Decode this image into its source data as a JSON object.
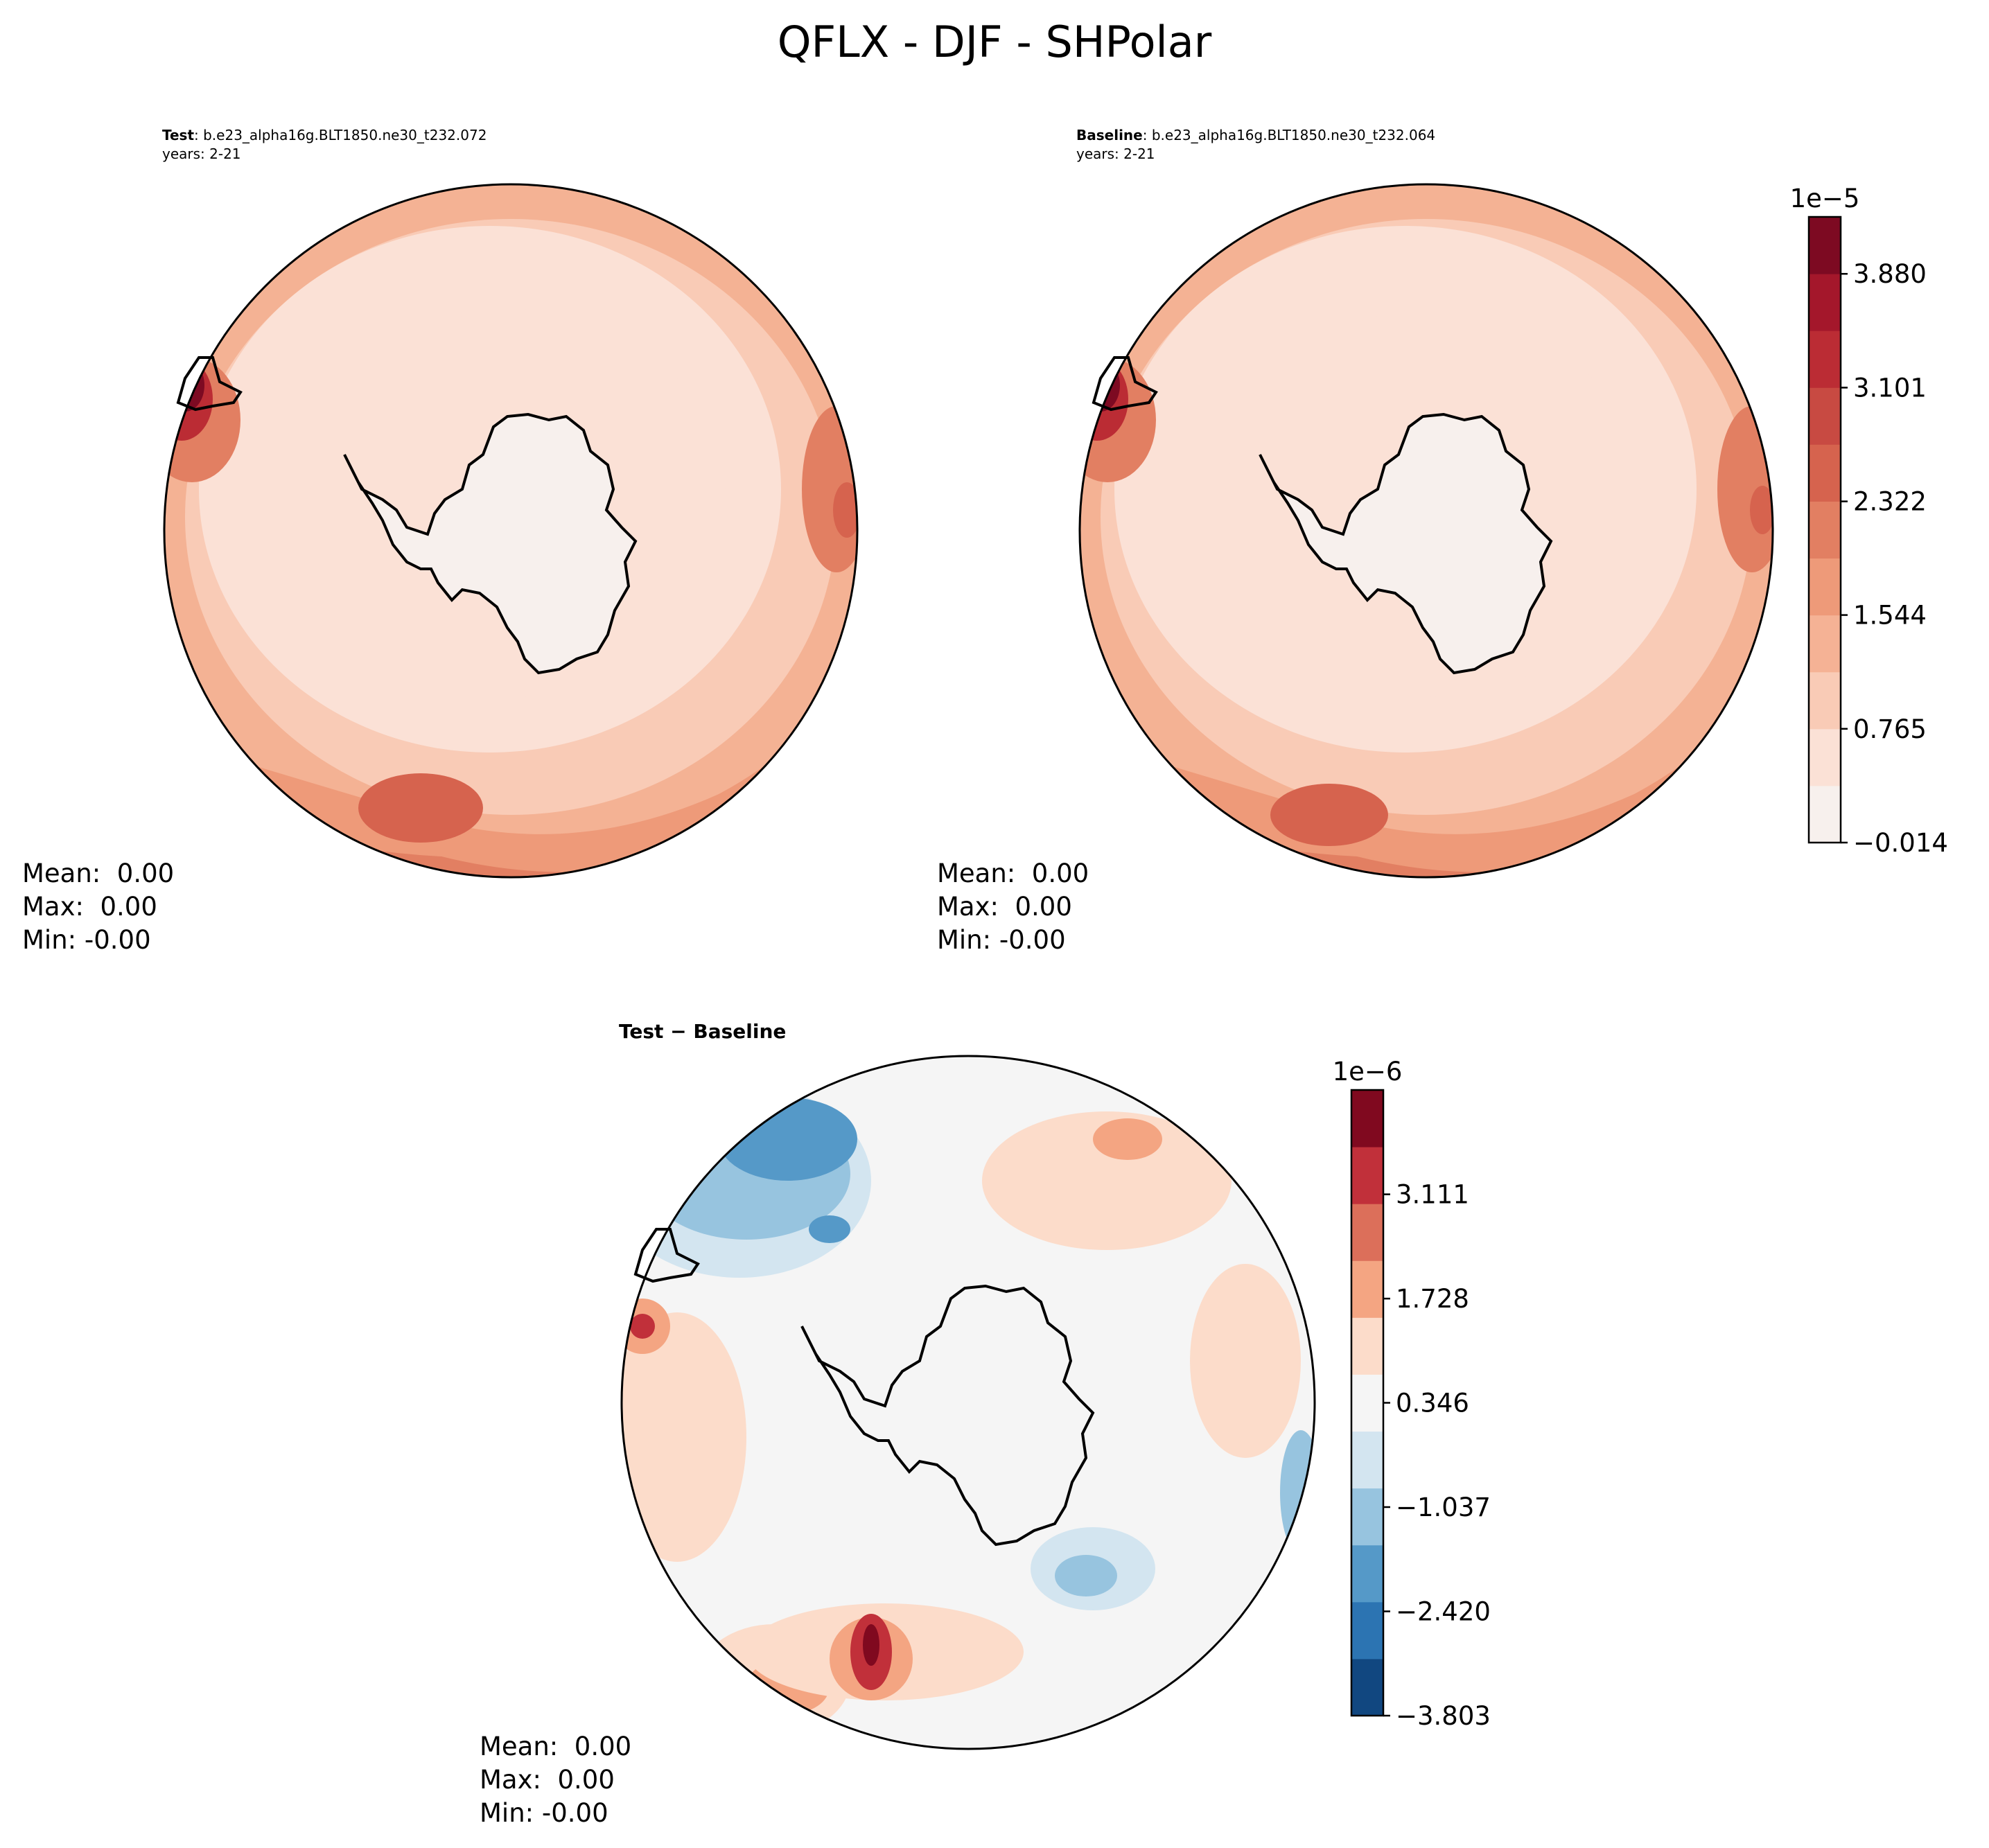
{
  "title": "QFLX - DJF - SHPolar",
  "panels": [
    {
      "id": "test",
      "label_bold": "Test",
      "label_rest": ": b.e23_alpha16g.BLT1850.ne30_t232.072",
      "years": "years: 2-21",
      "stats": {
        "mean": "Mean:  0.00",
        "max": "Max:  0.00",
        "min": "Min: -0.00"
      }
    },
    {
      "id": "baseline",
      "label_bold": "Baseline",
      "label_rest": ": b.e23_alpha16g.BLT1850.ne30_t232.064",
      "years": "years: 2-21",
      "stats": {
        "mean": "Mean:  0.00",
        "max": "Max:  0.00",
        "min": "Min: -0.00"
      }
    },
    {
      "id": "diff",
      "label_bold": "Test − Baseline",
      "label_rest": "",
      "years": "",
      "stats": {
        "mean": "Mean:  0.00",
        "max": "Max:  0.00",
        "min": "Min: -0.00"
      }
    }
  ],
  "colorbars": {
    "main": {
      "exponent": "1e−5",
      "ticks": [
        "−0.014",
        "0.765",
        "1.544",
        "2.322",
        "3.101",
        "3.880"
      ],
      "tick_values": [
        -0.014,
        0.765,
        1.544,
        2.322,
        3.101,
        3.88
      ],
      "range": [
        -0.014,
        4.27
      ],
      "colors": [
        "#f7f0ed",
        "#fbe1d6",
        "#f9cbb6",
        "#f5b295",
        "#ee9a79",
        "#e27f62",
        "#d6634e",
        "#c84a42",
        "#bb2c34",
        "#a4172b",
        "#7d0a22"
      ]
    },
    "diff": {
      "exponent": "1e−6",
      "ticks": [
        "−3.803",
        "−2.420",
        "−1.037",
        "0.346",
        "1.728",
        "3.111"
      ],
      "tick_values": [
        -3.803,
        -2.42,
        -1.037,
        0.346,
        1.728,
        3.111
      ],
      "range": [
        -3.803,
        4.495
      ],
      "colors": [
        "#114780",
        "#2c74b2",
        "#5599c8",
        "#97c4df",
        "#d3e5f0",
        "#f5f5f5",
        "#fcdcca",
        "#f4a582",
        "#dc6f5a",
        "#c1303a",
        "#80091f"
      ]
    }
  },
  "chart_data": {
    "type": "heatmap",
    "title": "QFLX - DJF - SHPolar",
    "projection": "south-polar-stereographic",
    "season": "DJF",
    "variable": "QFLX",
    "maps": [
      {
        "name": "Test",
        "case": "b.e23_alpha16g.BLT1850.ne30_t232.072",
        "years": "2-21",
        "mean": 0.0,
        "max": 0.0,
        "min": -0.0,
        "units_scale": "1e-5"
      },
      {
        "name": "Baseline",
        "case": "b.e23_alpha16g.BLT1850.ne30_t232.064",
        "years": "2-21",
        "mean": 0.0,
        "max": 0.0,
        "min": -0.0,
        "units_scale": "1e-5"
      },
      {
        "name": "Test − Baseline",
        "mean": 0.0,
        "max": 0.0,
        "min": -0.0,
        "units_scale": "1e-6"
      }
    ]
  }
}
